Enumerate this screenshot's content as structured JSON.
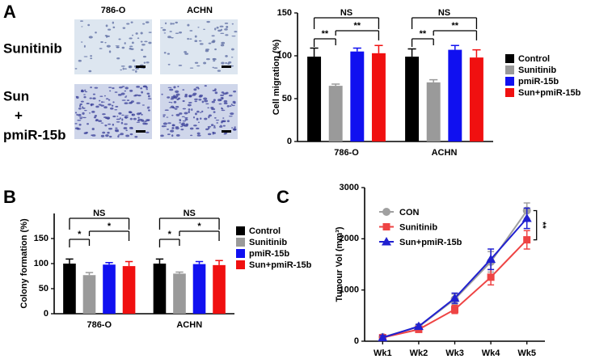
{
  "panel_labels": [
    "A",
    "B",
    "C"
  ],
  "micrographs": {
    "columns": [
      "786-O",
      "ACHN"
    ],
    "rows": [
      [
        "Sunitinib"
      ],
      [
        "Sun",
        "+",
        "pmiR-15b"
      ]
    ]
  },
  "chart_data": [
    {
      "type": "bar",
      "y_label": "Cell migration (%)",
      "categories": [
        "786-O",
        "ACHN"
      ],
      "ylim": [
        0,
        150
      ],
      "yticks": [
        0,
        50,
        100,
        150
      ],
      "legend": "right",
      "series": [
        {
          "name": "Control",
          "color": "#000000",
          "values": [
            99,
            99
          ],
          "errors": [
            10,
            9
          ]
        },
        {
          "name": "Sunitinib",
          "color": "#9a9a9a",
          "values": [
            65,
            69
          ],
          "errors": [
            2,
            3
          ]
        },
        {
          "name": "pmiR-15b",
          "color": "#1010f0",
          "values": [
            105,
            107
          ],
          "errors": [
            4,
            5
          ]
        },
        {
          "name": "Sun+pmiR-15b",
          "color": "#f01010",
          "values": [
            103,
            98
          ],
          "errors": [
            9,
            9
          ]
        }
      ],
      "annotations": [
        [
          "NS",
          "**",
          "**"
        ],
        [
          "NS",
          "**",
          "**"
        ]
      ]
    },
    {
      "type": "bar",
      "y_label": "Colony formation (%)",
      "categories": [
        "786-O",
        "ACHN"
      ],
      "ylim": [
        0,
        200
      ],
      "yticks": [
        0,
        50,
        100,
        150
      ],
      "legend": "right",
      "series": [
        {
          "name": "Control",
          "color": "#000000",
          "values": [
            100,
            100
          ],
          "errors": [
            9,
            9
          ]
        },
        {
          "name": "Sunitinib",
          "color": "#9a9a9a",
          "values": [
            77,
            80
          ],
          "errors": [
            5,
            3
          ]
        },
        {
          "name": "pmiR-15b",
          "color": "#1010f0",
          "values": [
            98,
            99
          ],
          "errors": [
            4,
            5
          ]
        },
        {
          "name": "Sun+pmiR-15b",
          "color": "#f01010",
          "values": [
            95,
            97
          ],
          "errors": [
            9,
            9
          ]
        }
      ],
      "annotations": [
        [
          "NS",
          "*",
          "*"
        ],
        [
          "NS",
          "*",
          "*"
        ]
      ]
    },
    {
      "type": "line",
      "y_label": "Tumour Vol (mm³)",
      "categories": [
        "Wk1",
        "Wk2",
        "Wk3",
        "Wk4",
        "Wk5"
      ],
      "ylim": [
        0,
        3000
      ],
      "yticks": [
        0,
        1000,
        2000,
        3000
      ],
      "legend": "upper left",
      "series": [
        {
          "name": "CON",
          "color": "#a0a0a0",
          "marker": "circle",
          "values": [
            80,
            280,
            820,
            1550,
            2550
          ],
          "errors": [
            30,
            40,
            100,
            200,
            150
          ]
        },
        {
          "name": "Sunitinib",
          "color": "#ee4444",
          "marker": "square",
          "values": [
            70,
            230,
            620,
            1250,
            1980
          ],
          "errors": [
            40,
            40,
            80,
            150,
            180
          ]
        },
        {
          "name": "Sun+pmiR-15b",
          "color": "#2020d0",
          "marker": "triangle",
          "values": [
            70,
            290,
            840,
            1600,
            2400
          ],
          "errors": [
            40,
            40,
            100,
            200,
            200
          ]
        }
      ],
      "annotations": [
        "**"
      ]
    }
  ]
}
